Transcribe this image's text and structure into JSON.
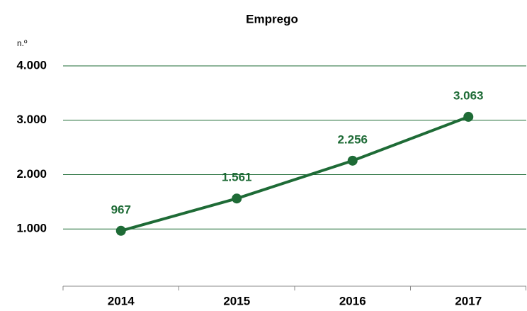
{
  "chart_data": {
    "type": "line",
    "title": "Emprego",
    "y_label": "n.º",
    "categories": [
      "2014",
      "2015",
      "2016",
      "2017"
    ],
    "values": [
      967,
      1561,
      2256,
      3063
    ],
    "value_labels": [
      "967",
      "1.561",
      "2.256",
      "3.063"
    ],
    "color": "#1e6b36",
    "ylim": [
      0,
      4000
    ],
    "yticks": [
      {
        "value": 1000,
        "label": "1.000"
      },
      {
        "value": 2000,
        "label": "2.000"
      },
      {
        "value": 3000,
        "label": "3.000"
      },
      {
        "value": 4000,
        "label": "4.000"
      }
    ],
    "grid": true
  }
}
